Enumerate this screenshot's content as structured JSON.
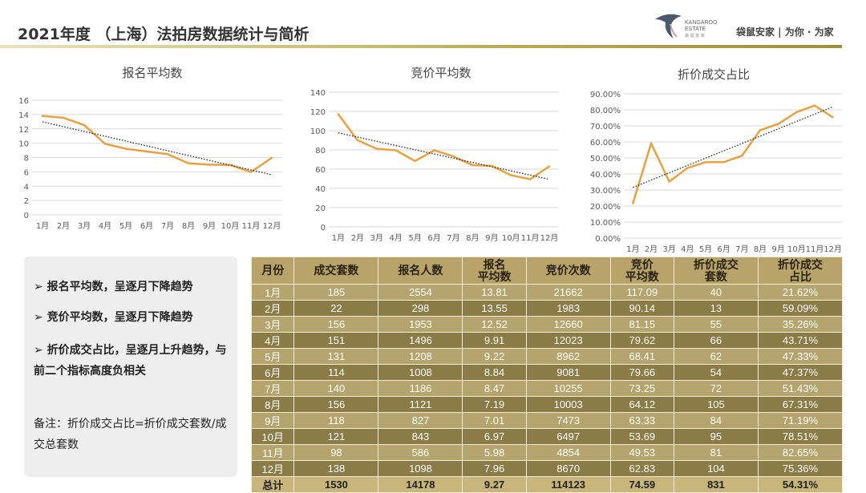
{
  "header": {
    "title": "2021年度 （上海）法拍房数据统计与简析",
    "logo_text": "KANGAROO ESTATE 袋鼠安家",
    "slogan": "袋鼠安家 | 为你 · 为家"
  },
  "colors": {
    "line": "#E8A040",
    "trend": "#222222",
    "gold": "#B8A46A"
  },
  "chart_data": [
    {
      "type": "line",
      "title": "报名平均数",
      "categories": [
        "1月",
        "2月",
        "3月",
        "4月",
        "5月",
        "6月",
        "7月",
        "8月",
        "9月",
        "10月",
        "11月",
        "12月"
      ],
      "values": [
        13.81,
        13.55,
        12.52,
        9.91,
        9.22,
        8.84,
        8.47,
        7.19,
        7.01,
        6.97,
        5.98,
        7.96
      ],
      "ylim": [
        0,
        16
      ],
      "yticks": [
        0,
        2,
        4,
        6,
        8,
        10,
        12,
        14,
        16
      ],
      "trendline": "linear dotted",
      "grid": true
    },
    {
      "type": "line",
      "title": "竞价平均数",
      "categories": [
        "1月",
        "2月",
        "3月",
        "4月",
        "5月",
        "6月",
        "7月",
        "8月",
        "9月",
        "10月",
        "11月",
        "12月"
      ],
      "values": [
        117.09,
        90.14,
        81.15,
        79.62,
        68.41,
        79.66,
        73.25,
        64.12,
        63.33,
        53.69,
        49.53,
        62.83
      ],
      "ylim": [
        0,
        140
      ],
      "yticks": [
        0,
        20,
        40,
        60,
        80,
        100,
        120,
        140
      ],
      "trendline": "linear dotted",
      "grid": true
    },
    {
      "type": "line",
      "title": "折价成交占比",
      "categories": [
        "1月",
        "2月",
        "3月",
        "4月",
        "5月",
        "6月",
        "7月",
        "8月",
        "9月",
        "10月",
        "11月",
        "12月"
      ],
      "values": [
        21.62,
        59.09,
        35.26,
        43.71,
        47.33,
        47.37,
        51.43,
        67.31,
        71.19,
        78.51,
        82.65,
        75.36
      ],
      "ylim": [
        0,
        90
      ],
      "yticks": [
        "0.00%",
        "10.00%",
        "20.00%",
        "30.00%",
        "40.00%",
        "50.00%",
        "60.00%",
        "70.00%",
        "80.00%",
        "90.00%"
      ],
      "trendline": "linear dotted",
      "grid": true
    }
  ],
  "notes": {
    "b1": "➢  报名平均数，呈逐月下降趋势",
    "b2": "➢  竞价平均数，呈逐月下降趋势",
    "b3": "➢  折价成交占比，呈逐月上升趋势，与前二个指标高度负相关",
    "remark": "备注：折价成交占比=折价成交套数/成交总套数"
  },
  "table": {
    "headers": [
      "月份",
      "成交套数",
      "报名人数",
      "报名\n平均数",
      "竞价次数",
      "竞价\n平均数",
      "折价成交\n套数",
      "折价成交\n占比"
    ],
    "rows": [
      [
        "1月",
        "185",
        "2554",
        "13.81",
        "21662",
        "117.09",
        "40",
        "21.62%"
      ],
      [
        "2月",
        "22",
        "298",
        "13.55",
        "1983",
        "90.14",
        "13",
        "59.09%"
      ],
      [
        "3月",
        "156",
        "1953",
        "12.52",
        "12660",
        "81.15",
        "55",
        "35.26%"
      ],
      [
        "4月",
        "151",
        "1496",
        "9.91",
        "12023",
        "79.62",
        "66",
        "43.71%"
      ],
      [
        "5月",
        "131",
        "1208",
        "9.22",
        "8962",
        "68.41",
        "62",
        "47.33%"
      ],
      [
        "6月",
        "114",
        "1008",
        "8.84",
        "9081",
        "79.66",
        "54",
        "47.37%"
      ],
      [
        "7月",
        "140",
        "1186",
        "8.47",
        "10255",
        "73.25",
        "72",
        "51.43%"
      ],
      [
        "8月",
        "156",
        "1121",
        "7.19",
        "10003",
        "64.12",
        "105",
        "67.31%"
      ],
      [
        "9月",
        "118",
        "827",
        "7.01",
        "7473",
        "63.33",
        "84",
        "71.19%"
      ],
      [
        "10月",
        "121",
        "843",
        "6.97",
        "6497",
        "53.69",
        "95",
        "78.51%"
      ],
      [
        "11月",
        "98",
        "586",
        "5.98",
        "4854",
        "49.53",
        "81",
        "82.65%"
      ],
      [
        "12月",
        "138",
        "1098",
        "7.96",
        "8670",
        "62.83",
        "104",
        "75.36%"
      ]
    ],
    "total": [
      "总计",
      "1530",
      "14178",
      "9.27",
      "114123",
      "74.59",
      "831",
      "54.31%"
    ]
  }
}
